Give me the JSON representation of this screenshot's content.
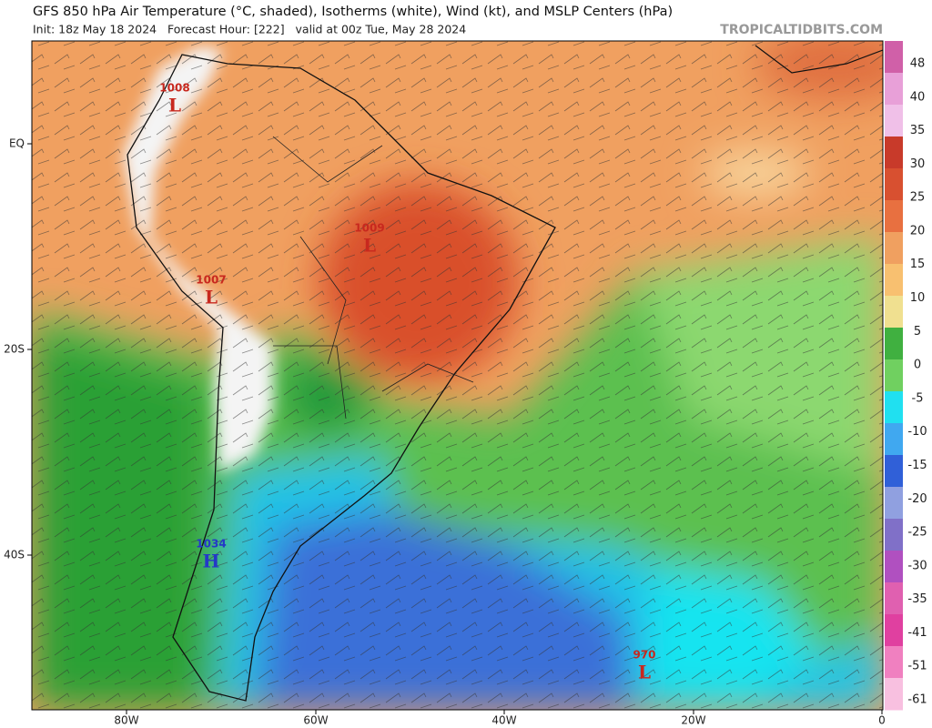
{
  "header": {
    "title": "GFS 850 hPa Air Temperature (°C, shaded), Isotherms (white), Wind (kt), and MSLP Centers (hPa)",
    "subtitle": "Init: 18z May 18 2024   Forecast Hour: [222]   valid at 00z Tue, May 28 2024",
    "site": "TROPICALTIDBITS.COM"
  },
  "map": {
    "lat_labels": [
      "EQ",
      "20S",
      "40S"
    ],
    "lon_labels": [
      "80W",
      "60W",
      "40W",
      "20W",
      "0"
    ]
  },
  "colorbar": {
    "labels": [
      48,
      40,
      35,
      30,
      25,
      20,
      15,
      10,
      5,
      0,
      -5,
      -10,
      -15,
      -20,
      -25,
      -30,
      -35,
      -41,
      -51,
      -61
    ]
  },
  "pressure_centers": [
    {
      "value": "1008",
      "letter": "L"
    },
    {
      "value": "1009",
      "letter": "L"
    },
    {
      "value": "1007",
      "letter": "L"
    },
    {
      "value": "1034",
      "letter": "H"
    },
    {
      "value": "970",
      "letter": "L"
    }
  ]
}
